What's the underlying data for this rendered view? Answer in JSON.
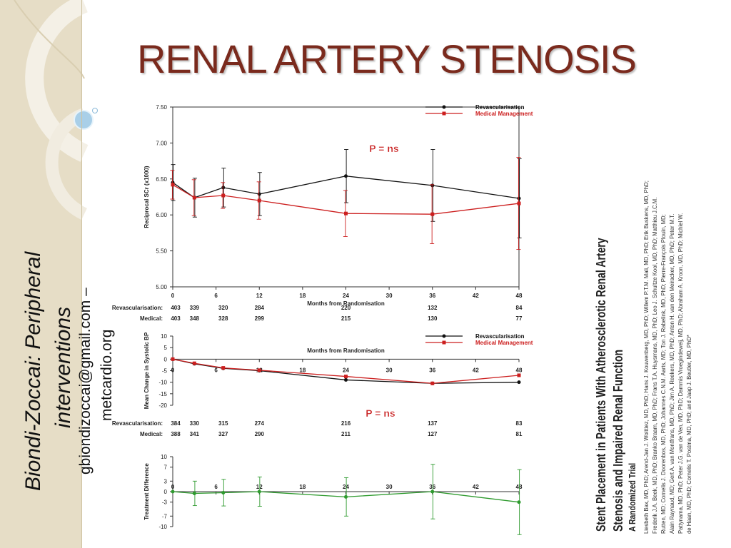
{
  "slide": {
    "title": "RENAL ARTERY STENOSIS",
    "side_text": [
      "Biondi-Zoccai: Peripheral",
      "interventions",
      "gbiondizoccai@gmail.com –",
      "metcardio.org"
    ],
    "paper": {
      "title_line1": "Stent Placement in Patients With Atherosclerotic Renal Artery",
      "title_line2": "Stenosis and Impaired Renal Function",
      "subtitle": "A Randomized Trial",
      "authors": [
        "Liesbeth Bax, MD, PhD; Arend-Jan J. Woittiez, MD, PhD; Hans J. Kouwenberg, MD, PhD; Willem P.T.M. Mali, MD, PhD; Erik Buskens, MD, PhD;",
        "Frederik J.A. Beek, MD, PhD; Branko Braam, MD, PhD; Frans T.A. Huysmans, MD, PhD; Leo J. Schultze Kool, MD, PhD; Matthieu J.C.M.",
        "Rutten, MD; Cornelis J. Doorenbos, MD, PhD; Johannes C.N.M. Aarts, MD; Ton J. Rabelink, MD, PhD; Pierre-François Plouin, MD;",
        "Alain Raynaud, MD; Gert A. van Montfrans, MD, PhD; Jim A. Reekers, MD, PhD; Anton H. van den Meiracker, MD, PhD; Peter M.T.",
        "Pattynama, MD, PhD; Peter J.G. van de Ven, MD, PhD; Dammis Vroegindeweij, MD, PhD; Abraham A. Kroon, MD, PhD; Michiel W.",
        "de Haan, MD, PhD; Cornelis T. Postma, MD, PhD; and Jaap J. Beutler, MD, PhD*"
      ]
    }
  },
  "chart_data": [
    {
      "type": "line",
      "ylabel": "Reciprocal SCr (x1000)",
      "xlabel": "Months from Randomisation",
      "xlim": [
        0,
        48
      ],
      "xticks": [
        0,
        6,
        12,
        18,
        24,
        30,
        36,
        42,
        48
      ],
      "ylim": [
        5.0,
        7.5
      ],
      "yticks": [
        "5.00",
        "5.50",
        "6.00",
        "6.50",
        "7.00",
        "7.50"
      ],
      "annotation": "P = ns",
      "legend_position": "top-right",
      "series": [
        {
          "name": "Revascularisation",
          "color": "#111111",
          "marker": "circle",
          "x": [
            0,
            3,
            7,
            12,
            24,
            36,
            48
          ],
          "y": [
            6.45,
            6.24,
            6.38,
            6.29,
            6.54,
            6.41,
            6.23
          ],
          "err": [
            0.25,
            0.27,
            0.27,
            0.3,
            0.37,
            0.5,
            0.55
          ]
        },
        {
          "name": "Medical Management",
          "color": "#cc1f1f",
          "marker": "square",
          "x": [
            0,
            3,
            7,
            12,
            24,
            36,
            48
          ],
          "y": [
            6.42,
            6.24,
            6.27,
            6.2,
            6.02,
            6.01,
            6.16
          ],
          "err": [
            0.2,
            0.25,
            0.18,
            0.26,
            0.32,
            0.41,
            0.64
          ]
        }
      ],
      "at_risk": {
        "x": [
          0,
          3,
          7,
          12,
          24,
          36,
          48
        ],
        "rows": [
          {
            "label": "Revascularisation:",
            "values": [
              "403",
              "339",
              "320",
              "284",
              "220",
              "132",
              "84"
            ]
          },
          {
            "label": "Medical:",
            "values": [
              "403",
              "348",
              "328",
              "299",
              "215",
              "130",
              "77"
            ]
          }
        ]
      }
    },
    {
      "type": "line",
      "ylabel": "Mean Change in Systolic BP",
      "xlabel": "Months from Randomisation",
      "xlim": [
        0,
        48
      ],
      "xticks": [
        0,
        6,
        12,
        18,
        24,
        30,
        36,
        42,
        48
      ],
      "ylim": [
        -20,
        10
      ],
      "yticks": [
        10,
        5,
        0,
        -5,
        -10,
        -15,
        -20
      ],
      "annotation": "P = ns",
      "legend_position": "top-right",
      "series": [
        {
          "name": "Revascularisation",
          "color": "#111111",
          "marker": "circle",
          "x": [
            0,
            3,
            7,
            12,
            24,
            36,
            48
          ],
          "y": [
            0,
            -2,
            -4,
            -5,
            -9,
            -10.5,
            -10
          ]
        },
        {
          "name": "Medical Management",
          "color": "#cc1f1f",
          "marker": "square",
          "x": [
            0,
            3,
            7,
            12,
            24,
            36,
            48
          ],
          "y": [
            0,
            -1.8,
            -3.8,
            -4.8,
            -7.5,
            -10.5,
            -7
          ]
        }
      ],
      "at_risk": {
        "x": [
          0,
          3,
          7,
          12,
          24,
          36,
          48
        ],
        "rows": [
          {
            "label": "Revascularisation:",
            "values": [
              "384",
              "330",
              "315",
              "274",
              "216",
              "137",
              "83"
            ]
          },
          {
            "label": "Medical:",
            "values": [
              "388",
              "341",
              "327",
              "290",
              "211",
              "127",
              "81"
            ]
          }
        ]
      }
    },
    {
      "type": "line",
      "ylabel": "Treatment Difference",
      "xlim": [
        0,
        48
      ],
      "xticks": [
        0,
        6,
        12,
        18,
        24,
        30,
        36,
        42,
        48
      ],
      "ylim": [
        -10,
        10
      ],
      "yticks": [
        10,
        7,
        3,
        0,
        -3,
        -7,
        -10
      ],
      "series": [
        {
          "color": "#2e9a2e",
          "marker": "circle",
          "x": [
            0,
            3,
            7,
            12,
            24,
            36,
            48
          ],
          "y": [
            0,
            -0.5,
            -0.3,
            0,
            -1.5,
            0,
            -3
          ],
          "err": [
            0,
            3.5,
            3.8,
            4.2,
            5.5,
            7.8,
            9.3
          ]
        }
      ]
    }
  ]
}
